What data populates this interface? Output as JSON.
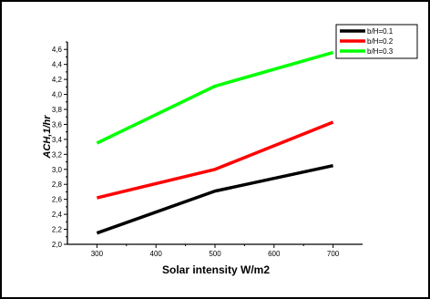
{
  "chart_data": {
    "type": "line",
    "x": [
      300,
      500,
      700
    ],
    "series": [
      {
        "name": "b/H=0.1",
        "values": [
          2.15,
          2.71,
          3.05
        ],
        "color": "#000000"
      },
      {
        "name": "b/H=0.2",
        "values": [
          2.62,
          3.0,
          3.63
        ],
        "color": "#ff0000"
      },
      {
        "name": "b/H=0.3",
        "values": [
          3.35,
          4.11,
          4.56
        ],
        "color": "#00ff00"
      }
    ],
    "xlabel": "Solar intensity W/m2",
    "ylabel": "ACH,1/hr",
    "xlim": [
      250,
      750
    ],
    "ylim": [
      2.0,
      4.7
    ],
    "xticks": [
      300,
      400,
      500,
      600,
      700
    ],
    "yticks": [
      2.0,
      2.2,
      2.4,
      2.6,
      2.8,
      3.0,
      3.2,
      3.4,
      3.6,
      3.8,
      4.0,
      4.2,
      4.4,
      4.6
    ],
    "ytick_labels": [
      "2,0",
      "2,2",
      "2,4",
      "2,6",
      "2,8",
      "3,0",
      "3,2",
      "3,4",
      "3,6",
      "3,8",
      "4,0",
      "4,2",
      "4,4",
      "4,6"
    ],
    "grid": false,
    "legend_position": "top-right"
  }
}
